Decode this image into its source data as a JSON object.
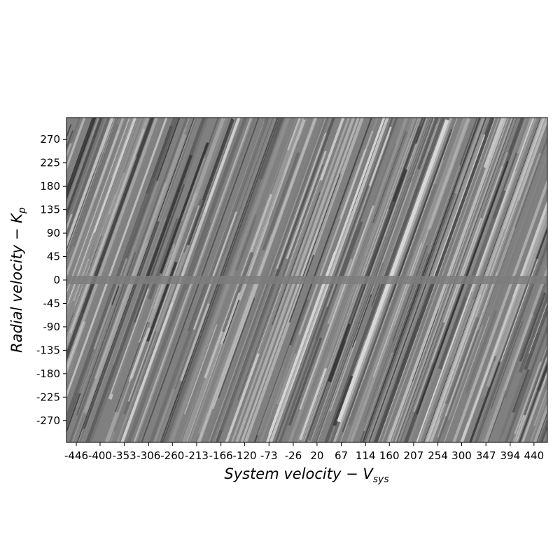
{
  "chart_data": {
    "type": "heatmap",
    "title": "",
    "colormap": "gray",
    "xlabel_main": "System velocity − V",
    "xlabel_sub": "sys",
    "ylabel_main": "Radial velocity − K",
    "ylabel_sub": "p",
    "xlim": [
      -465,
      466
    ],
    "ylim": [
      -312,
      312
    ],
    "x_ticks": [
      -446,
      -400,
      -353,
      -306,
      -260,
      -213,
      -166,
      -120,
      -73,
      -26,
      20,
      67,
      114,
      160,
      207,
      254,
      300,
      347,
      394,
      440
    ],
    "y_ticks": [
      270,
      225,
      180,
      135,
      90,
      45,
      0,
      -45,
      -90,
      -135,
      -180,
      -225,
      -270
    ],
    "grid": false,
    "colors": {
      "frame": "#000000",
      "background": "#808080"
    }
  }
}
